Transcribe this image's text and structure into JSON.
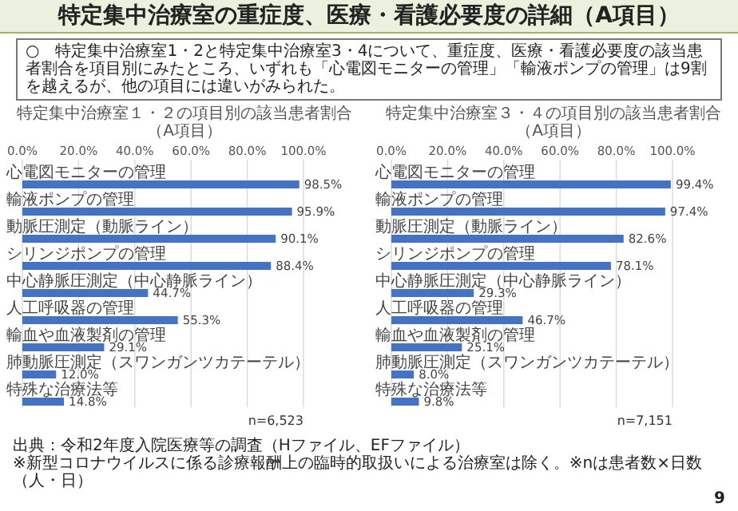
{
  "chart_data": [
    {
      "type": "other",
      "title": "特定集中治療室の重症度、医療・看護必要度の詳細（A項目）",
      "annotations": [
        "○　特定集中治療室1・2と特定集中治療室3・4について、重症度、医療・看護必要度の該当患者割合を項目別にみたところ、いずれも「心電図モニターの管理」「輸液ポンプの管理」は9割を越えるが、他の項目には違いがみられた。",
        "出典：令和2年度入院医療等の調査（Hファイル、EFファイル）",
        "※新型コロナウイルスに係る診療報酬上の臨時的取扱いによる治療室は除く。※nは患者数×日数（人・日）",
        "9"
      ]
    },
    {
      "type": "bar",
      "orientation": "horizontal",
      "title": "特定集中治療室１・２の項目別の該当患者割合（A項目）",
      "categories": [
        "心電図モニターの管理",
        "輸液ポンプの管理",
        "動脈圧測定（動脈ライン）",
        "シリンジポンプの管理",
        "中心静脈圧測定（中心静脈ライン）",
        "人工呼吸器の管理",
        "輸血や血液製剤の管理",
        "肺動脈圧測定（スワンガンツカテーテル）",
        "特殊な治療法等"
      ],
      "values": [
        98.5,
        95.9,
        90.1,
        88.4,
        44.7,
        55.3,
        29.1,
        12.0,
        14.8
      ],
      "value_labels": [
        "98.5%",
        "95.9%",
        "90.1%",
        "88.4%",
        "44.7%",
        "55.3%",
        "29.1%",
        "12.0%",
        "14.8%"
      ],
      "color": "#4472c4",
      "xlim": [
        0,
        100
      ],
      "xticks": [
        {
          "value": 0,
          "label": "0.0%"
        },
        {
          "value": 20,
          "label": "20.0%"
        },
        {
          "value": 40,
          "label": "40.0%"
        },
        {
          "value": 60,
          "label": "60.0%"
        },
        {
          "value": 80,
          "label": "80.0%"
        },
        {
          "value": 100,
          "label": "100.0%"
        }
      ],
      "grid": "x",
      "annotations": [
        "n=6,523"
      ]
    },
    {
      "type": "bar",
      "orientation": "horizontal",
      "title": "特定集中治療室３・４の項目別の該当患者割合（A項目）",
      "categories": [
        "心電図モニターの管理",
        "輸液ポンプの管理",
        "動脈圧測定（動脈ライン）",
        "シリンジポンプの管理",
        "中心静脈圧測定（中心静脈ライン）",
        "人工呼吸器の管理",
        "輸血や血液製剤の管理",
        "肺動脈圧測定（スワンガンツカテーテル）",
        "特殊な治療法等"
      ],
      "values": [
        99.4,
        97.4,
        82.6,
        78.1,
        29.3,
        46.7,
        25.1,
        8.0,
        9.8
      ],
      "value_labels": [
        "99.4%",
        "97.4%",
        "82.6%",
        "78.1%",
        "29.3%",
        "46.7%",
        "25.1%",
        "8.0%",
        "9.8%"
      ],
      "color": "#4472c4",
      "xlim": [
        0,
        100
      ],
      "xticks": [
        {
          "value": 0,
          "label": "0.0%"
        },
        {
          "value": 20,
          "label": "20.0%"
        },
        {
          "value": 40,
          "label": "40.0%"
        },
        {
          "value": 60,
          "label": "60.0%"
        },
        {
          "value": 80,
          "label": "80.0%"
        },
        {
          "value": 100,
          "label": "100.0%"
        }
      ],
      "grid": "x",
      "annotations": [
        "n=7,151"
      ]
    }
  ]
}
